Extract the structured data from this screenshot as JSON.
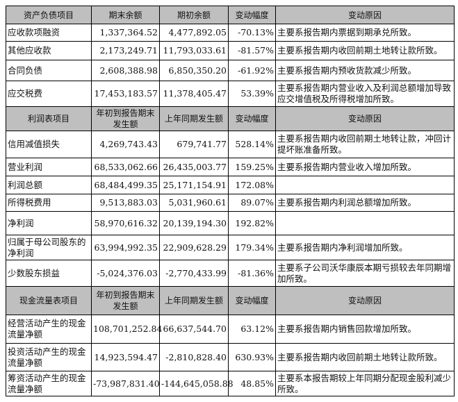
{
  "sections": [
    {
      "header": [
        "资产负债项目",
        "期末余额",
        "期初余额",
        "变动幅度",
        "变动原因"
      ],
      "rows": [
        [
          "应收款项融资",
          "1,337,364.52",
          "4,477,892.05",
          "-70.13%",
          "主要系报告期内票据到期承兑所致。"
        ],
        [
          "其他应收款",
          "2,173,249.71",
          "11,793,033.61",
          "-81.57%",
          "主要系报告期内收回前期土地转让款所致。"
        ],
        [
          "合同负债",
          "2,608,388.98",
          "6,850,350.20",
          "-61.92%",
          "主要系报告期内预收货款减少所致。"
        ],
        [
          "应交税费",
          "17,453,183.57",
          "11,378,405.47",
          "53.39%",
          "主要系报告期内营业收入及利润总额增加导致应交增值税及所得税增加所致。"
        ]
      ]
    },
    {
      "header": [
        "利润表项目",
        "年初到报告期末发生额",
        "上年同期发生额",
        "变动幅度",
        "变动原因"
      ],
      "rows": [
        [
          "信用减值损失",
          "4,269,743.43",
          "679,741.77",
          "528.14%",
          "主要系报告期内收回前期土地转让款，冲回计提坏账准备所致。"
        ],
        [
          "营业利润",
          "68,533,062.66",
          "26,435,003.77",
          "159.25%",
          "主要系报告期内营业收入增加所致。"
        ],
        [
          "利润总额",
          "68,484,499.35",
          "25,171,154.91",
          "172.08%",
          ""
        ],
        [
          "所得税费用",
          "9,513,883.03",
          "5,031,960.61",
          "89.07%",
          "主要系报告期内利润总额增加所致。"
        ],
        [
          "净利润",
          "58,970,616.32",
          "20,139,194.30",
          "192.82%",
          ""
        ],
        [
          "归属于母公司股东的净利润",
          "63,994,992.35",
          "22,909,628.29",
          "179.34%",
          "主要系报告期内净利润增加所致。"
        ],
        [
          "少数股东损益",
          "-5,024,376.03",
          "-2,770,433.99",
          "-81.36%",
          "主要系子公司沃华康辰本期亏损较去年同期增加所致。"
        ]
      ]
    },
    {
      "header": [
        "现金流量表项目",
        "年初到报告期末发生额",
        "上年同期发生额",
        "变动幅度",
        "变动原因"
      ],
      "rows": [
        [
          "经营活动产生的现金流量净额",
          "108,701,252.84",
          "66,637,544.70",
          "63.12%",
          "主要系报告期内销售回款增加所致。"
        ],
        [
          "投资活动产生的现金流量净额",
          "14,923,594.47",
          "-2,810,828.40",
          "630.93%",
          "主要系报告期内收回前期土地转让款所致。"
        ],
        [
          "筹资活动产生的现金流量净额",
          "-73,987,831.40",
          "-144,645,058.88",
          "48.85%",
          "主要系本报告期较上年同期分配现金股利减少所致。"
        ]
      ]
    }
  ],
  "header_color": "#bfbfbf"
}
